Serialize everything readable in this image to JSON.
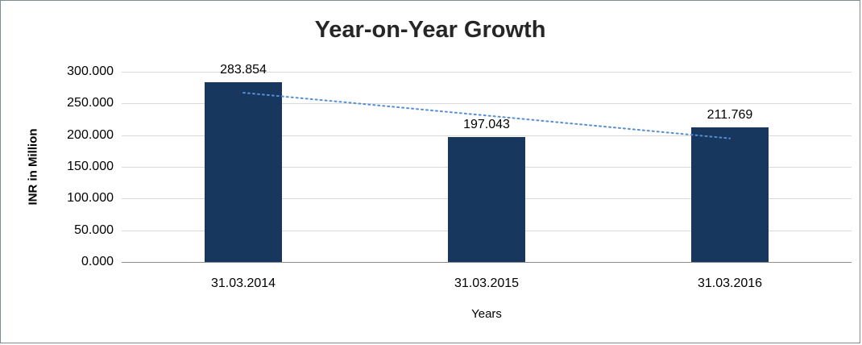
{
  "chart_data": {
    "type": "bar",
    "title": "Year-on-Year Growth",
    "xlabel": "Years",
    "ylabel": "INR in Million",
    "categories": [
      "31.03.2014",
      "31.03.2015",
      "31.03.2016"
    ],
    "values": [
      283.854,
      197.043,
      211.769
    ],
    "data_labels": [
      "283.854",
      "197.043",
      "211.769"
    ],
    "ylim": [
      0,
      300
    ],
    "ytick_values": [
      0,
      50,
      100,
      150,
      200,
      250,
      300
    ],
    "ytick_labels": [
      "0.000",
      "50.000",
      "100.000",
      "150.000",
      "200.000",
      "250.000",
      "300.000"
    ],
    "grid": true,
    "legend": "none",
    "bar_color": "#17375E",
    "gridline_color": "#D9D9D9",
    "axis_color": "#8C8C8C",
    "trendline": {
      "type": "linear",
      "style": "dotted",
      "color": "#558ED5",
      "start_value": 266.9,
      "end_value": 194.9
    }
  }
}
